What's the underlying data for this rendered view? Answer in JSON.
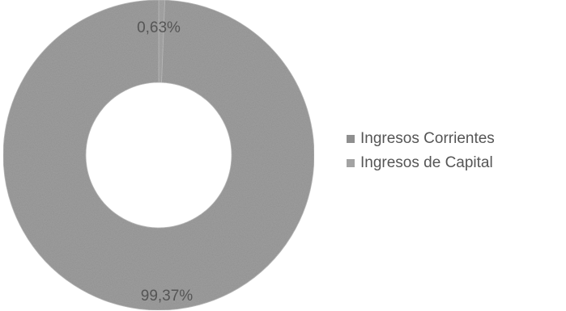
{
  "chart_data": {
    "type": "pie",
    "variant": "donut",
    "categories": [
      "Ingresos Corrientes",
      "Ingresos de Capital"
    ],
    "values": [
      99.37,
      0.63
    ],
    "labels": [
      "99,37%",
      "0,63%"
    ],
    "colors": [
      "#9e9e9e",
      "#a6a6a6"
    ],
    "legend_placement": "right",
    "title": ""
  },
  "legend": {
    "items": [
      {
        "label": "Ingresos Corrientes",
        "color": "#8f8f8f"
      },
      {
        "label": "Ingresos de Capital",
        "color": "#a3a3a3"
      }
    ]
  }
}
